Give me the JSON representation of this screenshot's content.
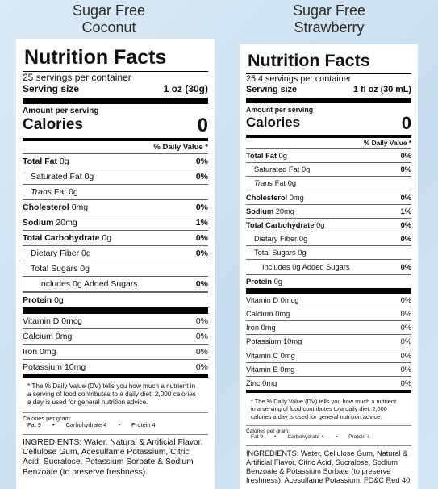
{
  "products": [
    {
      "title_line1": "Sugar Free",
      "title_line2": "Coconut",
      "label": {
        "heading": "Nutrition Facts",
        "servings": "25 servings per container",
        "serving_size_label": "Serving size",
        "serving_size": "1 oz (30g)",
        "amount_per_serving": "Amount per serving",
        "calories_label": "Calories",
        "calories": "0",
        "dv_header": "% Daily Value *",
        "nutrients": [
          {
            "name": "Total Fat",
            "amount": "0g",
            "dv": "0%"
          },
          {
            "name": "Saturated Fat",
            "amount": "0g",
            "dv": "0%"
          },
          {
            "prefix": "Trans",
            "name": "Fat",
            "amount": "0g"
          },
          {
            "name": "Cholesterol",
            "amount": "0mg",
            "dv": "0%"
          },
          {
            "name": "Sodium",
            "amount": "20mg",
            "dv": "1%"
          },
          {
            "name": "Total Carbohydrate",
            "amount": "0g",
            "dv": "0%"
          },
          {
            "name": "Dietary Fiber",
            "amount": "0g",
            "dv": "0%"
          },
          {
            "name": "Total Sugars",
            "amount": "0g"
          },
          {
            "name": "Includes 0g Added Sugars",
            "dv": "0%"
          },
          {
            "name": "Protein",
            "amount": "0g"
          }
        ],
        "vitamins": [
          {
            "name": "Vitamin D",
            "amount": "0mcg",
            "dv": "0%"
          },
          {
            "name": "Calcium",
            "amount": "0mg",
            "dv": "0%"
          },
          {
            "name": "Iron",
            "amount": "0mg",
            "dv": "0%"
          },
          {
            "name": "Potassium",
            "amount": "10mg",
            "dv": "0%"
          }
        ],
        "footnote": "* The % Daily Value (DV) tells you how much a nutrient in a serving of food contributes to a daily diet. 2,000 calories a day is used for general nutrition advice.",
        "calories_per_gram": {
          "title": "Calories per gram:",
          "items": [
            "Fat 9",
            "•",
            "Carbohydrate 4",
            "•",
            "Protein 4"
          ]
        },
        "ingredients": "INGREDIENTS: Water, Natural & Artificial Flavor, Cellulose Gum, Acesulfame Potassium, Citric Acid, Sucralose, Potassium Sorbate & Sodium Benzoate (to preserve freshness)"
      }
    },
    {
      "title_line1": "Sugar Free",
      "title_line2": "Strawberry",
      "label": {
        "heading": "Nutrition Facts",
        "servings": "25.4 servings per container",
        "serving_size_label": "Serving size",
        "serving_size": "1 fl oz (30 mL)",
        "amount_per_serving": "Amount per serving",
        "calories_label": "Calories",
        "calories": "0",
        "dv_header": "% Daily Value *",
        "nutrients": [
          {
            "name": "Total Fat",
            "amount": "0g",
            "dv": "0%"
          },
          {
            "name": "Saturated Fat",
            "amount": "0g",
            "dv": "0%"
          },
          {
            "prefix": "Trans",
            "name": "Fat",
            "amount": "0g"
          },
          {
            "name": "Cholesterol",
            "amount": "0mg",
            "dv": "0%"
          },
          {
            "name": "Sodium",
            "amount": "20mg",
            "dv": "1%"
          },
          {
            "name": "Total Carbohydrate",
            "amount": "0g",
            "dv": "0%"
          },
          {
            "name": "Dietary Fiber",
            "amount": "0g",
            "dv": "0%"
          },
          {
            "name": "Total Sugars",
            "amount": "0g"
          },
          {
            "name": "Includes 0g Added Sugars",
            "dv": "0%"
          },
          {
            "name": "Protein",
            "amount": "0g"
          }
        ],
        "vitamins": [
          {
            "name": "Vitamin D",
            "amount": "0mcg",
            "dv": "0%"
          },
          {
            "name": "Calcium",
            "amount": "0mg",
            "dv": "0%"
          },
          {
            "name": "Iron",
            "amount": "0mg",
            "dv": "0%"
          },
          {
            "name": "Potassium",
            "amount": "10mg",
            "dv": "0%"
          },
          {
            "name": "Vitamin C",
            "amount": "0mg",
            "dv": "0%"
          },
          {
            "name": "Vitamin E",
            "amount": "0mg",
            "dv": "0%"
          },
          {
            "name": "Zinc",
            "amount": "0mg",
            "dv": "0%"
          }
        ],
        "footnote": "* The % Daily Value (DV) tells you how much a nutrient in a serving of food contributes to a daily diet. 2,000 calories a day is used for general nutrition advice.",
        "calories_per_gram": {
          "title": "Calories per gram:",
          "items": [
            "Fat 9",
            "•",
            "Carbohydrate 4",
            "•",
            "Protein 4"
          ]
        },
        "ingredients": "INGREDIENTS: Water, Cellulose Gum, Natural & Artificial Flavor, Citric Acid, Sucralose, Sodium Benzoate & Potassium Sorbate (to preserve freshness), Acesulfame Potassium, FD&C Red 40"
      }
    }
  ]
}
